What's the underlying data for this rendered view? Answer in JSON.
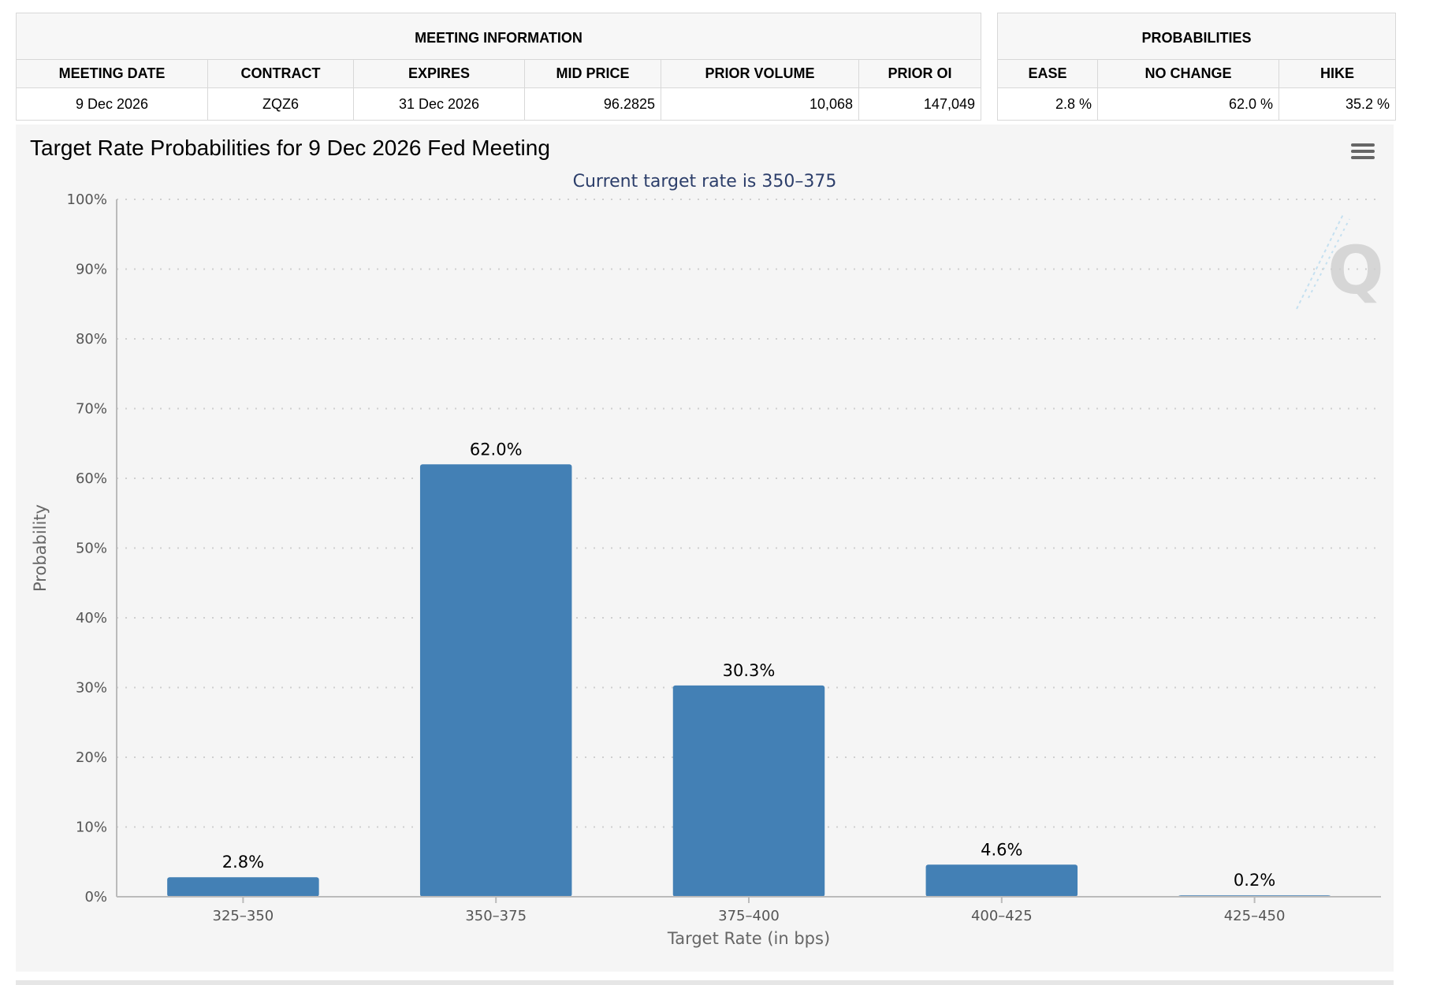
{
  "meeting_info": {
    "title": "MEETING INFORMATION",
    "columns": [
      "MEETING DATE",
      "CONTRACT",
      "EXPIRES",
      "MID PRICE",
      "PRIOR VOLUME",
      "PRIOR OI"
    ],
    "row": [
      "9 Dec 2026",
      "ZQZ6",
      "31 Dec 2026",
      "96.2825",
      "10,068",
      "147,049"
    ]
  },
  "probabilities": {
    "title": "PROBABILITIES",
    "columns": [
      "EASE",
      "NO CHANGE",
      "HIKE"
    ],
    "row": [
      "2.8 %",
      "62.0 %",
      "35.2 %"
    ]
  },
  "chart_menu_icon": "hamburger-menu-icon",
  "watermark_icon": "q-logo-watermark",
  "colors": {
    "bar": "#4380b5",
    "background": "#f5f5f5",
    "subtitle": "#2c3e6a"
  },
  "chart_data": {
    "type": "bar",
    "title": "Target Rate Probabilities for 9 Dec 2026 Fed Meeting",
    "subtitle": "Current target rate is 350–375",
    "xlabel": "Target Rate (in bps)",
    "ylabel": "Probability",
    "categories": [
      "325–350",
      "350–375",
      "375–400",
      "400–425",
      "425–450"
    ],
    "values": [
      2.8,
      62.0,
      30.3,
      4.6,
      0.2
    ],
    "data_labels": [
      "2.8%",
      "62.0%",
      "30.3%",
      "4.6%",
      "0.2%"
    ],
    "ylim": [
      0,
      100
    ],
    "yticks": [
      0,
      10,
      20,
      30,
      40,
      50,
      60,
      70,
      80,
      90,
      100
    ],
    "ytick_labels": [
      "0%",
      "10%",
      "20%",
      "30%",
      "40%",
      "50%",
      "60%",
      "70%",
      "80%",
      "90%",
      "100%"
    ],
    "grid": true,
    "legend": "none"
  }
}
